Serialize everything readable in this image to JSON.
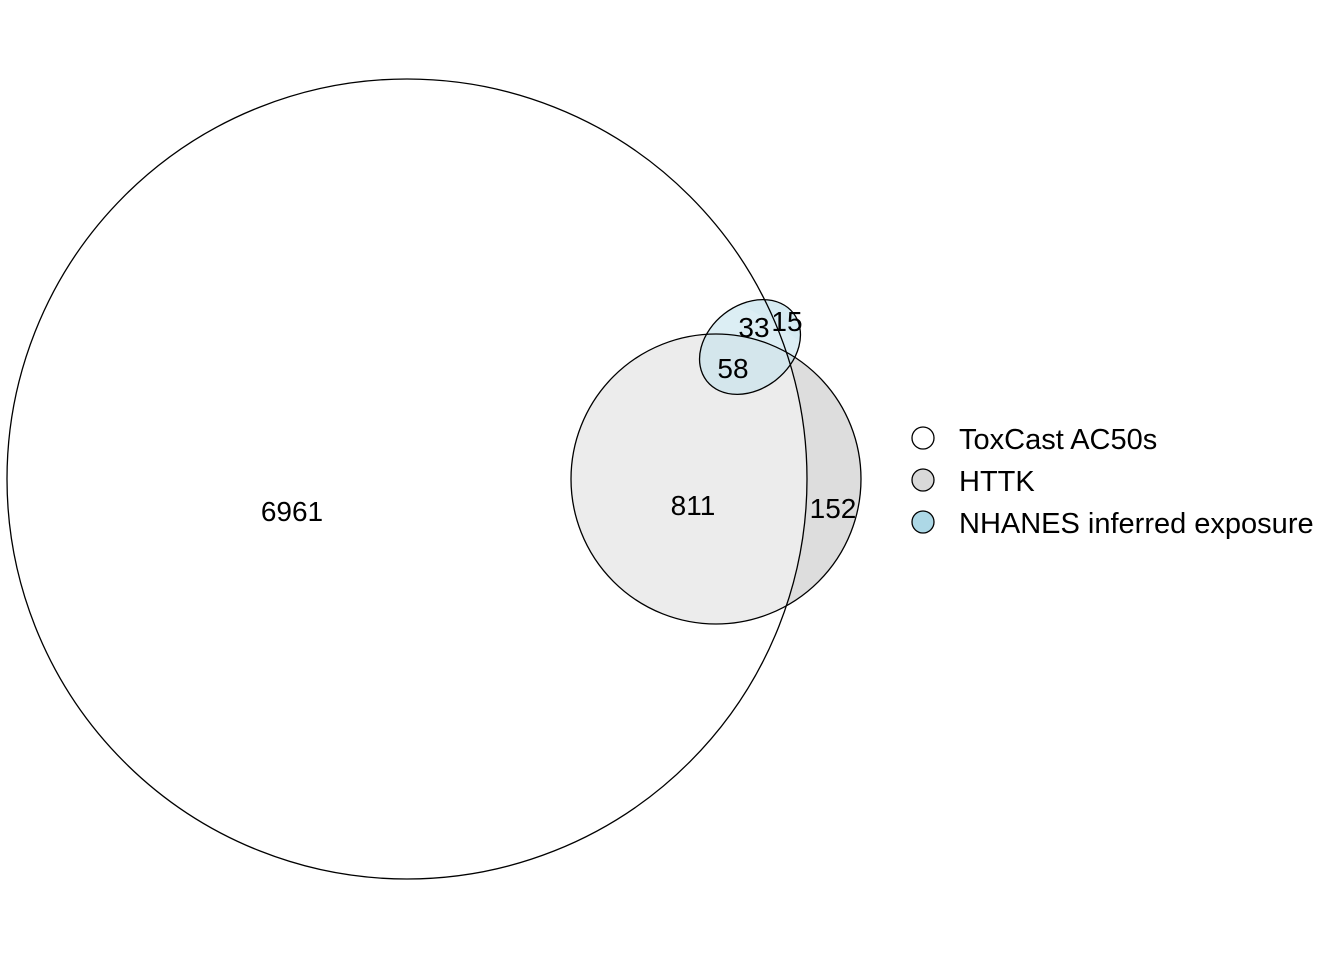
{
  "legend": {
    "items": [
      {
        "label": "ToxCast AC50s",
        "color": "#ffffff"
      },
      {
        "label": "HTTK",
        "color": "#d9d9d9"
      },
      {
        "label": "NHANES inferred exposure",
        "color": "#add8e6"
      }
    ]
  },
  "regions": {
    "toxcast_only": "6961",
    "toxcast_httk": "811",
    "httk_only": "152",
    "all_three": "58",
    "toxcast_nhanes": "33",
    "nhanes_only": "15"
  },
  "colors": {
    "toxcast": "#ffffff",
    "httk": "#d9d9d9",
    "nhanes": "#add8e6",
    "outline": "#000000"
  }
}
